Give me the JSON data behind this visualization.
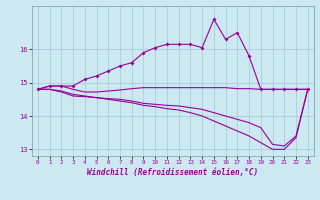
{
  "xlabel": "Windchill (Refroidissement éolien,°C)",
  "bg_color": "#cce8f0",
  "line_color": "#990099",
  "grid_color": "#aaccdd",
  "hours": [
    0,
    1,
    2,
    3,
    4,
    5,
    6,
    7,
    8,
    9,
    10,
    11,
    12,
    13,
    14,
    15,
    16,
    17,
    18,
    19,
    20,
    21,
    22,
    23
  ],
  "line1": [
    14.8,
    14.9,
    14.9,
    14.9,
    15.1,
    15.2,
    15.35,
    15.5,
    15.6,
    15.9,
    16.05,
    16.15,
    16.15,
    16.15,
    16.05,
    16.9,
    16.3,
    16.5,
    15.8,
    14.8,
    14.8,
    14.8,
    14.8,
    14.8
  ],
  "line2": [
    14.8,
    14.9,
    14.9,
    14.8,
    14.72,
    14.72,
    14.75,
    14.78,
    14.82,
    14.85,
    14.85,
    14.85,
    14.85,
    14.85,
    14.85,
    14.85,
    14.85,
    14.82,
    14.82,
    14.8,
    14.8,
    14.8,
    14.8,
    14.8
  ],
  "line3": [
    14.8,
    14.8,
    14.72,
    14.6,
    14.58,
    14.55,
    14.52,
    14.5,
    14.45,
    14.38,
    14.35,
    14.32,
    14.3,
    14.25,
    14.2,
    14.1,
    14.0,
    13.9,
    13.8,
    13.65,
    13.15,
    13.1,
    13.4,
    14.8
  ],
  "line4": [
    14.8,
    14.8,
    14.75,
    14.65,
    14.6,
    14.55,
    14.5,
    14.45,
    14.4,
    14.32,
    14.28,
    14.22,
    14.18,
    14.1,
    14.0,
    13.85,
    13.7,
    13.55,
    13.4,
    13.2,
    13.0,
    13.0,
    13.35,
    14.8
  ],
  "ylim": [
    12.8,
    17.3
  ],
  "yticks": [
    13,
    14,
    15,
    16
  ],
  "xtick_labels": [
    "0",
    "1",
    "2",
    "3",
    "4",
    "5",
    "6",
    "7",
    "8",
    "9",
    "10",
    "11",
    "12",
    "13",
    "14",
    "15",
    "16",
    "17",
    "18",
    "19",
    "20",
    "21",
    "22",
    "23"
  ]
}
